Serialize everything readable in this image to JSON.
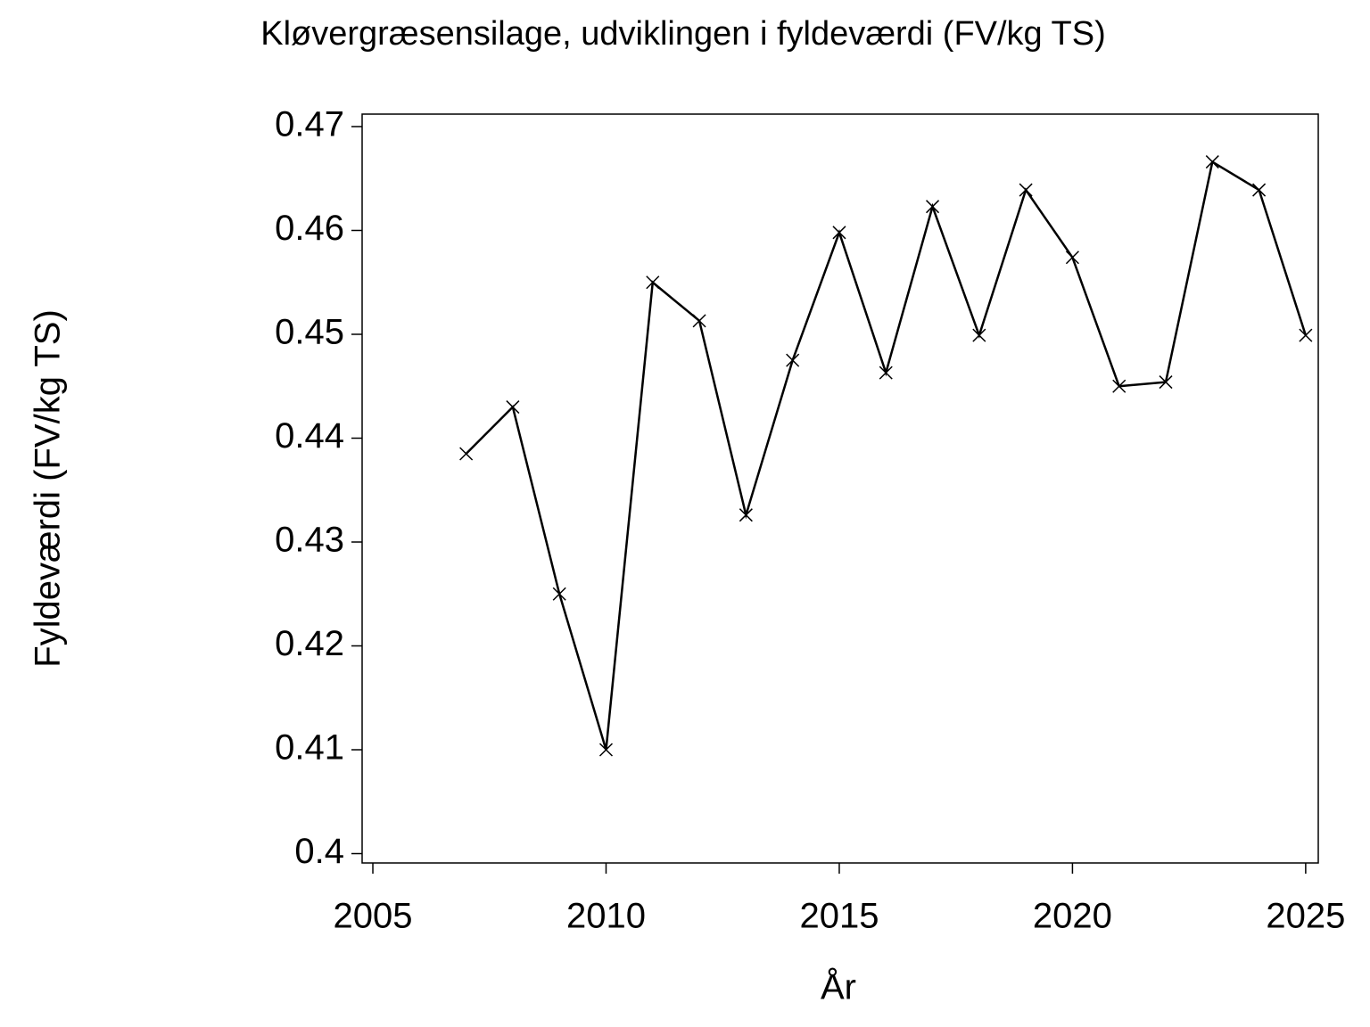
{
  "chart_data": {
    "type": "line",
    "title": "Kløvergræsensilage, udviklingen i fyldeværdi (FV/kg TS)",
    "x_label": "År",
    "y_label": "Fyldeværdi (FV/kg TS)",
    "x": [
      2007,
      2008,
      2009,
      2010,
      2011,
      2012,
      2013,
      2014,
      2015,
      2016,
      2017,
      2018,
      2019,
      2020,
      2021,
      2022,
      2023,
      2024,
      2025
    ],
    "series": [
      {
        "name": "Fyldeværdi",
        "color": "#000000",
        "values": [
          0.4385,
          0.443,
          0.425,
          0.41,
          0.455,
          0.4513,
          0.4326,
          0.4475,
          0.4598,
          0.4463,
          0.4623,
          0.4499,
          0.4639,
          0.4574,
          0.445,
          0.4454,
          0.4666,
          0.4639,
          0.4499
        ]
      }
    ],
    "xlim": [
      2004.77,
      2025.27
    ],
    "ylim": [
      0.3991,
      0.4712
    ],
    "xticks": [
      2005,
      2010,
      2015,
      2020,
      2025
    ],
    "yticks": [
      0.4,
      0.41,
      0.42,
      0.43,
      0.44,
      0.45,
      0.46,
      0.47
    ],
    "marker": "x"
  }
}
